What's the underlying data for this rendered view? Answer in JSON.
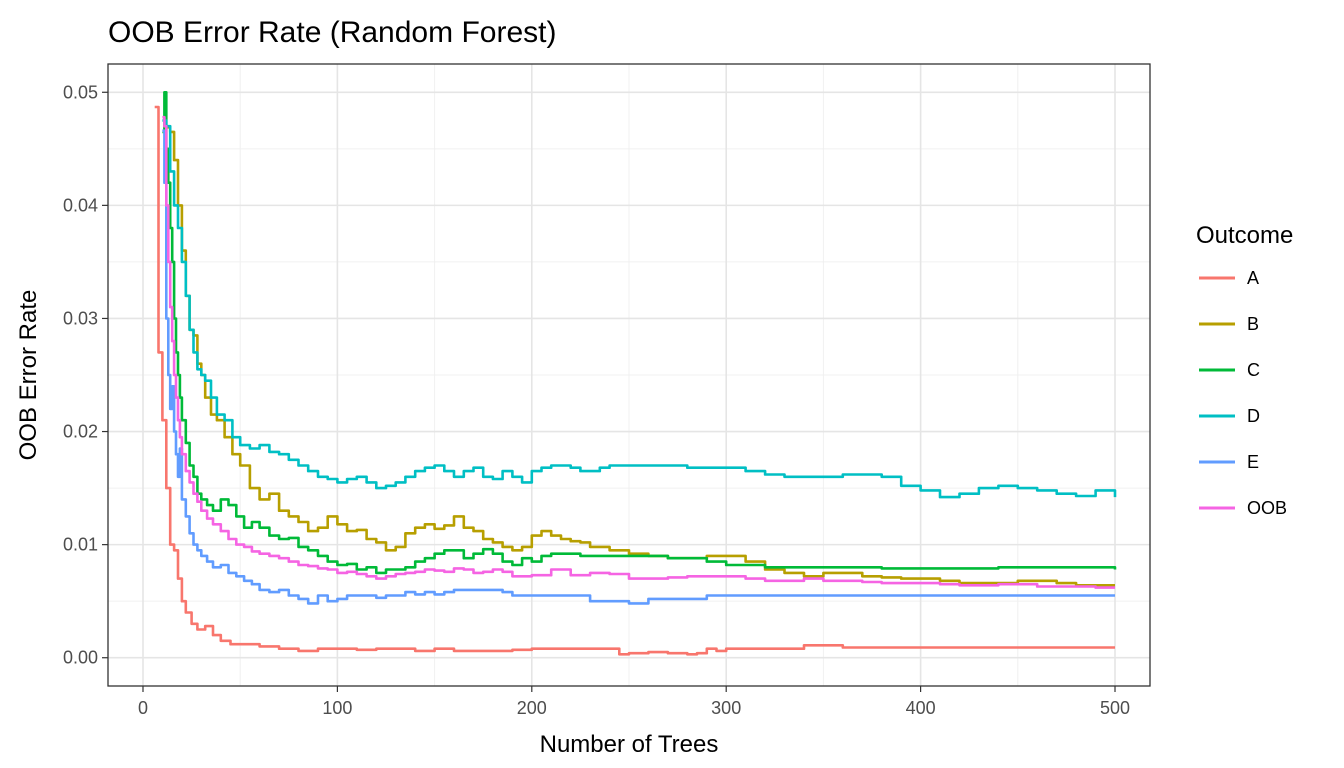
{
  "chart_data": {
    "type": "line",
    "title": "OOB Error Rate (Random Forest)",
    "xlabel": "Number of Trees",
    "ylabel": "OOB Error Rate",
    "xlim": [
      -18,
      518
    ],
    "ylim": [
      -0.0025,
      0.0525
    ],
    "x_ticks": [
      0,
      100,
      200,
      300,
      400,
      500
    ],
    "x_tick_labels": [
      "0",
      "100",
      "200",
      "300",
      "400",
      "500"
    ],
    "y_ticks": [
      0.0,
      0.01,
      0.02,
      0.03,
      0.04,
      0.05
    ],
    "y_tick_labels": [
      "0.00",
      "0.01",
      "0.02",
      "0.03",
      "0.04",
      "0.05"
    ],
    "grid": true,
    "legend": {
      "title": "Outcome",
      "position": "right"
    },
    "series": [
      {
        "name": "A",
        "color": "#F8766D",
        "x": [
          6,
          8,
          10,
          12,
          14,
          16,
          18,
          20,
          22,
          25,
          28,
          32,
          36,
          40,
          45,
          50,
          60,
          70,
          80,
          90,
          100,
          110,
          120,
          130,
          140,
          150,
          160,
          170,
          180,
          190,
          200,
          210,
          220,
          230,
          240,
          245,
          250,
          255,
          260,
          270,
          280,
          285,
          290,
          295,
          300,
          310,
          320,
          340,
          360,
          380,
          400,
          420,
          440,
          460,
          480,
          500
        ],
        "y": [
          0.0487,
          0.027,
          0.021,
          0.015,
          0.01,
          0.0095,
          0.007,
          0.005,
          0.004,
          0.003,
          0.0025,
          0.0028,
          0.002,
          0.0015,
          0.0012,
          0.0012,
          0.001,
          0.0008,
          0.0006,
          0.0008,
          0.0008,
          0.0007,
          0.0008,
          0.0008,
          0.0006,
          0.0008,
          0.0006,
          0.0006,
          0.0006,
          0.0007,
          0.0008,
          0.0008,
          0.0008,
          0.0008,
          0.0008,
          0.0003,
          0.0004,
          0.0004,
          0.0005,
          0.0004,
          0.0003,
          0.0004,
          0.0008,
          0.0006,
          0.0008,
          0.0008,
          0.0008,
          0.0011,
          0.0009,
          0.0009,
          0.0009,
          0.0009,
          0.0009,
          0.0009,
          0.0009,
          0.0009
        ]
      },
      {
        "name": "B",
        "color": "#B79F00",
        "x": [
          12,
          14,
          16,
          18,
          20,
          22,
          24,
          26,
          28,
          30,
          32,
          35,
          38,
          42,
          46,
          50,
          55,
          60,
          65,
          70,
          75,
          80,
          85,
          90,
          95,
          100,
          105,
          110,
          115,
          120,
          125,
          130,
          135,
          140,
          145,
          150,
          155,
          160,
          165,
          170,
          175,
          180,
          185,
          190,
          195,
          200,
          205,
          210,
          215,
          220,
          225,
          230,
          240,
          250,
          260,
          270,
          280,
          290,
          300,
          310,
          320,
          330,
          340,
          350,
          360,
          370,
          380,
          390,
          400,
          410,
          420,
          430,
          440,
          450,
          460,
          470,
          480,
          490,
          500
        ],
        "y": [
          0.0469,
          0.0465,
          0.044,
          0.04,
          0.036,
          0.032,
          0.029,
          0.0285,
          0.026,
          0.025,
          0.023,
          0.0215,
          0.021,
          0.0195,
          0.018,
          0.017,
          0.015,
          0.014,
          0.0145,
          0.013,
          0.0125,
          0.012,
          0.0112,
          0.0115,
          0.0125,
          0.0118,
          0.0112,
          0.0113,
          0.0105,
          0.0102,
          0.0095,
          0.0098,
          0.011,
          0.0115,
          0.0118,
          0.0114,
          0.0117,
          0.0125,
          0.0115,
          0.0112,
          0.0105,
          0.0102,
          0.0098,
          0.0095,
          0.0098,
          0.0108,
          0.0112,
          0.0108,
          0.0105,
          0.0103,
          0.0102,
          0.0098,
          0.0095,
          0.0092,
          0.009,
          0.0088,
          0.0088,
          0.009,
          0.009,
          0.0085,
          0.0078,
          0.0075,
          0.0072,
          0.0075,
          0.0075,
          0.0072,
          0.0071,
          0.007,
          0.007,
          0.0068,
          0.0066,
          0.0066,
          0.0066,
          0.0068,
          0.0068,
          0.0066,
          0.0064,
          0.0064,
          0.0064
        ]
      },
      {
        "name": "C",
        "color": "#00BA38",
        "x": [
          10,
          11,
          12,
          13,
          14,
          15,
          16,
          17,
          18,
          19,
          20,
          22,
          24,
          26,
          28,
          30,
          33,
          36,
          40,
          44,
          48,
          52,
          56,
          60,
          65,
          70,
          75,
          80,
          85,
          90,
          95,
          100,
          105,
          110,
          115,
          120,
          125,
          130,
          135,
          140,
          145,
          150,
          155,
          160,
          165,
          170,
          175,
          180,
          185,
          190,
          195,
          200,
          205,
          210,
          215,
          220,
          225,
          230,
          240,
          250,
          260,
          270,
          280,
          290,
          300,
          320,
          340,
          360,
          380,
          400,
          420,
          440,
          460,
          480,
          500
        ],
        "y": [
          0.0465,
          0.05,
          0.045,
          0.042,
          0.038,
          0.035,
          0.03,
          0.027,
          0.025,
          0.023,
          0.021,
          0.019,
          0.017,
          0.016,
          0.0145,
          0.014,
          0.0135,
          0.013,
          0.014,
          0.0135,
          0.0125,
          0.0115,
          0.012,
          0.0115,
          0.0108,
          0.0105,
          0.0106,
          0.0098,
          0.0095,
          0.009,
          0.0085,
          0.0082,
          0.0083,
          0.0078,
          0.008,
          0.0075,
          0.0078,
          0.0078,
          0.008,
          0.0085,
          0.0088,
          0.0092,
          0.0095,
          0.0095,
          0.0088,
          0.0092,
          0.0096,
          0.0092,
          0.0085,
          0.0082,
          0.0088,
          0.0085,
          0.009,
          0.0092,
          0.0092,
          0.0092,
          0.009,
          0.009,
          0.009,
          0.009,
          0.009,
          0.0088,
          0.0088,
          0.0085,
          0.0082,
          0.008,
          0.008,
          0.008,
          0.0079,
          0.0079,
          0.0079,
          0.008,
          0.008,
          0.008,
          0.0078
        ]
      },
      {
        "name": "D",
        "color": "#00BFC4",
        "x": [
          10,
          12,
          14,
          16,
          18,
          20,
          22,
          24,
          26,
          28,
          30,
          32,
          35,
          38,
          42,
          46,
          50,
          55,
          60,
          65,
          70,
          75,
          80,
          85,
          90,
          95,
          100,
          105,
          110,
          115,
          120,
          125,
          130,
          135,
          140,
          145,
          150,
          155,
          160,
          165,
          170,
          175,
          180,
          185,
          190,
          195,
          200,
          205,
          210,
          215,
          220,
          225,
          230,
          235,
          240,
          250,
          260,
          270,
          280,
          290,
          300,
          310,
          320,
          330,
          340,
          350,
          360,
          370,
          380,
          390,
          400,
          410,
          420,
          430,
          440,
          450,
          460,
          470,
          480,
          490,
          500
        ],
        "y": [
          0.0475,
          0.047,
          0.043,
          0.04,
          0.038,
          0.035,
          0.032,
          0.029,
          0.027,
          0.0255,
          0.025,
          0.0245,
          0.023,
          0.0215,
          0.021,
          0.0195,
          0.0188,
          0.0185,
          0.0188,
          0.0182,
          0.018,
          0.0175,
          0.017,
          0.0165,
          0.016,
          0.0158,
          0.0155,
          0.0158,
          0.016,
          0.0155,
          0.015,
          0.0152,
          0.0155,
          0.016,
          0.0165,
          0.0168,
          0.017,
          0.0165,
          0.016,
          0.0165,
          0.0168,
          0.016,
          0.0158,
          0.0165,
          0.016,
          0.0155,
          0.0165,
          0.0168,
          0.017,
          0.017,
          0.0168,
          0.0165,
          0.0165,
          0.0168,
          0.017,
          0.017,
          0.017,
          0.017,
          0.0168,
          0.0168,
          0.0168,
          0.0165,
          0.0162,
          0.016,
          0.016,
          0.016,
          0.0162,
          0.0162,
          0.016,
          0.0152,
          0.0148,
          0.0142,
          0.0145,
          0.015,
          0.0152,
          0.015,
          0.0148,
          0.0145,
          0.0143,
          0.0148,
          0.0142
        ]
      },
      {
        "name": "E",
        "color": "#619CFF",
        "x": [
          10,
          11,
          12,
          13,
          14,
          15,
          16,
          17,
          18,
          19,
          20,
          22,
          24,
          26,
          28,
          30,
          33,
          36,
          40,
          44,
          48,
          52,
          56,
          60,
          65,
          70,
          75,
          80,
          85,
          90,
          95,
          100,
          105,
          110,
          115,
          120,
          125,
          130,
          135,
          140,
          145,
          150,
          155,
          160,
          165,
          170,
          175,
          180,
          185,
          190,
          195,
          200,
          210,
          220,
          230,
          240,
          250,
          260,
          270,
          280,
          290,
          300,
          320,
          340,
          360,
          380,
          400,
          420,
          440,
          460,
          480,
          500
        ],
        "y": [
          0.0466,
          0.042,
          0.03,
          0.025,
          0.022,
          0.024,
          0.02,
          0.018,
          0.016,
          0.0185,
          0.014,
          0.0125,
          0.011,
          0.01,
          0.0095,
          0.009,
          0.0085,
          0.008,
          0.0082,
          0.0075,
          0.0072,
          0.0068,
          0.0065,
          0.006,
          0.0058,
          0.006,
          0.0055,
          0.0052,
          0.0048,
          0.0055,
          0.005,
          0.0052,
          0.0055,
          0.0055,
          0.0055,
          0.0053,
          0.0055,
          0.0055,
          0.0058,
          0.0056,
          0.0058,
          0.0056,
          0.0058,
          0.006,
          0.006,
          0.006,
          0.006,
          0.006,
          0.0058,
          0.0055,
          0.0055,
          0.0055,
          0.0055,
          0.0055,
          0.005,
          0.005,
          0.0048,
          0.0052,
          0.0052,
          0.0052,
          0.0055,
          0.0055,
          0.0055,
          0.0055,
          0.0055,
          0.0055,
          0.0055,
          0.0055,
          0.0055,
          0.0055,
          0.0055,
          0.0055
        ]
      },
      {
        "name": "OOB",
        "color": "#F564E3",
        "x": [
          10,
          11,
          12,
          13,
          14,
          15,
          16,
          17,
          18,
          19,
          20,
          22,
          24,
          26,
          28,
          30,
          33,
          36,
          40,
          44,
          48,
          52,
          56,
          60,
          65,
          70,
          75,
          80,
          85,
          90,
          95,
          100,
          105,
          110,
          115,
          120,
          125,
          130,
          135,
          140,
          145,
          150,
          155,
          160,
          165,
          170,
          175,
          180,
          185,
          190,
          195,
          200,
          210,
          220,
          230,
          240,
          250,
          260,
          270,
          280,
          290,
          300,
          310,
          320,
          330,
          340,
          350,
          360,
          370,
          380,
          390,
          400,
          410,
          420,
          430,
          440,
          450,
          460,
          470,
          480,
          490,
          500
        ],
        "y": [
          0.0478,
          0.047,
          0.04,
          0.035,
          0.031,
          0.028,
          0.025,
          0.023,
          0.021,
          0.0195,
          0.018,
          0.0165,
          0.0155,
          0.0145,
          0.0138,
          0.013,
          0.0123,
          0.0118,
          0.0112,
          0.0105,
          0.01,
          0.0098,
          0.0094,
          0.0092,
          0.009,
          0.0088,
          0.0085,
          0.0082,
          0.0081,
          0.0079,
          0.0078,
          0.0075,
          0.0076,
          0.0074,
          0.0072,
          0.007,
          0.0072,
          0.0074,
          0.0075,
          0.0076,
          0.0078,
          0.0077,
          0.0076,
          0.0079,
          0.0078,
          0.0075,
          0.0076,
          0.0078,
          0.0076,
          0.0072,
          0.0072,
          0.0073,
          0.0078,
          0.0073,
          0.0075,
          0.0074,
          0.007,
          0.007,
          0.0071,
          0.0072,
          0.0072,
          0.0072,
          0.007,
          0.0068,
          0.0068,
          0.007,
          0.0068,
          0.0068,
          0.0067,
          0.0066,
          0.0066,
          0.0066,
          0.0065,
          0.0064,
          0.0064,
          0.0065,
          0.0065,
          0.0063,
          0.0063,
          0.0063,
          0.0062,
          0.0062
        ]
      }
    ]
  }
}
